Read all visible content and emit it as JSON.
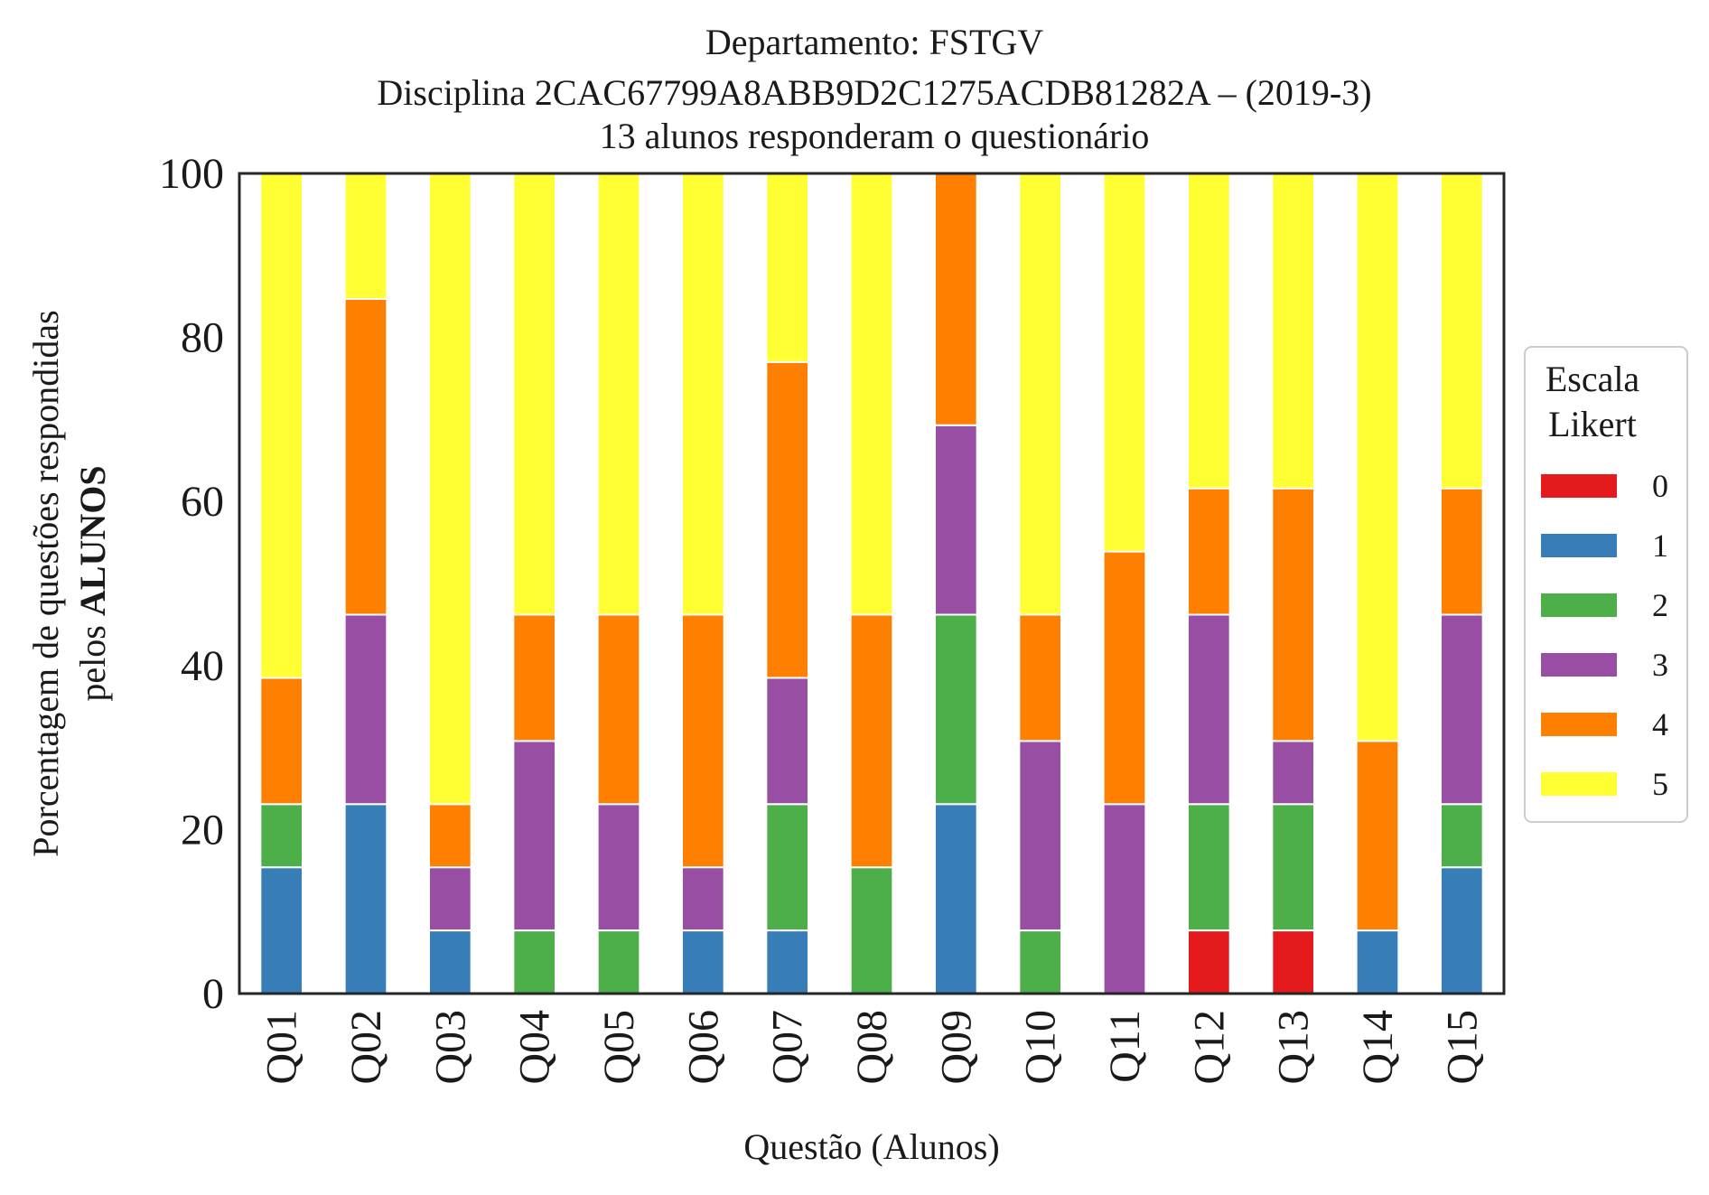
{
  "title_lines": [
    "Departamento: FSTGV",
    "Disciplina 2CAC67799A8ABB9D2C1275ACDB81282A – (2019-3)",
    "13 alunos responderam o questionário"
  ],
  "chart_data": {
    "type": "bar",
    "stacked": true,
    "categories": [
      "Q01",
      "Q02",
      "Q03",
      "Q04",
      "Q05",
      "Q06",
      "Q07",
      "Q08",
      "Q09",
      "Q10",
      "Q11",
      "Q12",
      "Q13",
      "Q14",
      "Q15"
    ],
    "xlabel": "Questão (Alunos)",
    "ylabel_line1": "Porcentagem de questões respondidas",
    "ylabel_line2_prefix": "pelos ",
    "ylabel_line2_bold": "ALUNOS",
    "ylim": [
      0,
      100
    ],
    "yticks": [
      0,
      20,
      40,
      60,
      80,
      100
    ],
    "grid": false,
    "legend": {
      "title_lines": [
        "Escala",
        "Likert"
      ],
      "placement": "right"
    },
    "series": [
      {
        "name": "0",
        "color": "#e41a1c",
        "values": [
          0,
          0,
          0,
          0,
          0,
          0,
          0,
          0,
          0,
          0,
          0,
          7.7,
          7.7,
          0,
          0
        ]
      },
      {
        "name": "1",
        "color": "#377eb8",
        "values": [
          15.4,
          23.1,
          7.7,
          0,
          0,
          7.7,
          7.7,
          0,
          23.1,
          0,
          0,
          0,
          0,
          7.7,
          15.4
        ]
      },
      {
        "name": "2",
        "color": "#4daf4a",
        "values": [
          7.7,
          0,
          0,
          7.7,
          7.7,
          0,
          15.4,
          15.4,
          23.1,
          7.7,
          0,
          15.4,
          15.4,
          0,
          7.7
        ]
      },
      {
        "name": "3",
        "color": "#984ea3",
        "values": [
          0,
          23.1,
          7.7,
          23.1,
          15.4,
          7.7,
          15.4,
          0,
          23.1,
          23.1,
          23.1,
          23.1,
          7.7,
          0,
          23.1
        ]
      },
      {
        "name": "4",
        "color": "#ff7f00",
        "values": [
          15.4,
          38.5,
          7.7,
          15.4,
          23.1,
          30.8,
          38.5,
          30.8,
          30.8,
          15.4,
          30.8,
          15.4,
          30.8,
          23.1,
          15.4
        ]
      },
      {
        "name": "5",
        "color": "#ffff33",
        "values": [
          61.5,
          15.4,
          76.9,
          53.8,
          53.8,
          53.8,
          23.1,
          53.8,
          0,
          53.8,
          46.2,
          38.5,
          38.5,
          69.2,
          38.5
        ]
      }
    ]
  }
}
